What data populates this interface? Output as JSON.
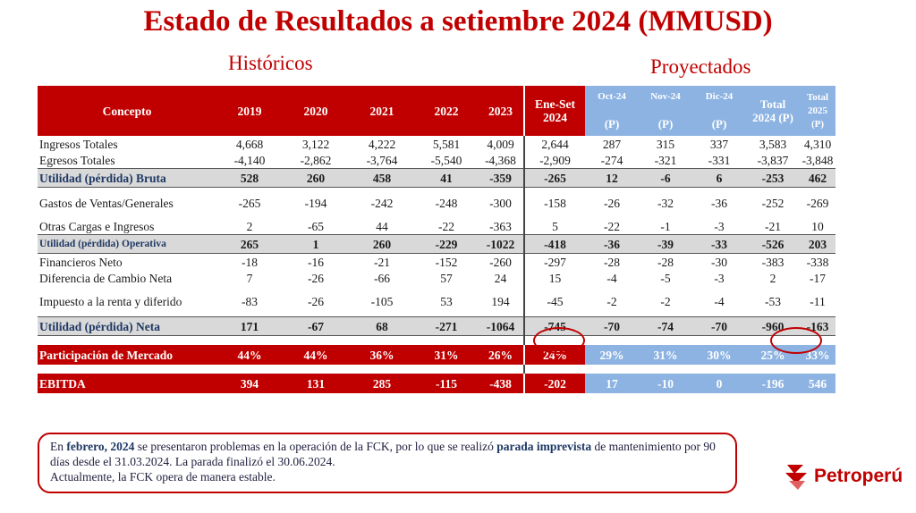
{
  "title": "Estado de Resultados a setiembre 2024 (MMUSD)",
  "subtitle_hist": "Históricos",
  "subtitle_proj": "Proyectados",
  "headers": {
    "concepto": "Concepto",
    "years": [
      "2019",
      "2020",
      "2021",
      "2022",
      "2023"
    ],
    "eneset": [
      "Ene-Set",
      "2024"
    ],
    "oct": [
      "Oct-24",
      "(P)"
    ],
    "nov": [
      "Nov-24",
      "(P)"
    ],
    "dic": [
      "Dic-24",
      "(P)"
    ],
    "total24": [
      "Total",
      "2024 (P)"
    ],
    "total25": [
      "Total",
      "2025",
      "(P)"
    ]
  },
  "rows": [
    {
      "name": "Ingresos Totales",
      "style": "normal",
      "v": [
        "4,668",
        "3,122",
        "4,222",
        "5,581",
        "4,009",
        "2,644",
        "287",
        "315",
        "337",
        "3,583",
        "4,310"
      ]
    },
    {
      "name": "Egresos Totales",
      "style": "normal",
      "v": [
        "-4,140",
        "-2,862",
        "-3,764",
        "-5,540",
        "-4,368",
        "-2,909",
        "-274",
        "-321",
        "-331",
        "-3,837",
        "-3,848"
      ]
    },
    {
      "name": "Utilidad (pérdida) Bruta",
      "style": "bold",
      "v": [
        "528",
        "260",
        "458",
        "41",
        "-359",
        "-265",
        "12",
        "-6",
        "6",
        "-253",
        "462"
      ]
    },
    {
      "name": "Gastos de Ventas/Generales",
      "style": "tall",
      "v": [
        "-265",
        "-194",
        "-242",
        "-248",
        "-300",
        "-158",
        "-26",
        "-32",
        "-36",
        "-252",
        "-269"
      ]
    },
    {
      "name": "Otras Cargas e Ingresos",
      "style": "normal",
      "v": [
        "2",
        "-65",
        "44",
        "-22",
        "-363",
        "5",
        "-22",
        "-1",
        "-3",
        "-21",
        "10"
      ]
    },
    {
      "name": "Utilidad (pérdida) Operativa",
      "style": "bold-small",
      "v": [
        "265",
        "1",
        "260",
        "-229",
        "-1022",
        "-418",
        "-36",
        "-39",
        "-33",
        "-526",
        "203"
      ]
    },
    {
      "name": "Financieros Neto",
      "style": "normal",
      "v": [
        "-18",
        "-16",
        "-21",
        "-152",
        "-260",
        "-297",
        "-28",
        "-28",
        "-30",
        "-383",
        "-338"
      ]
    },
    {
      "name": "Diferencia de Cambio Neta",
      "style": "normal",
      "v": [
        "7",
        "-26",
        "-66",
        "57",
        "24",
        "15",
        "-4",
        "-5",
        "-3",
        "2",
        "-17"
      ]
    },
    {
      "name": "Impuesto a la renta y diferido",
      "style": "tall",
      "v": [
        "-83",
        "-26",
        "-105",
        "53",
        "194",
        "-45",
        "-2",
        "-2",
        "-4",
        "-53",
        "-11"
      ]
    },
    {
      "name": "Utilidad (pérdida) Neta",
      "style": "bold",
      "v": [
        "171",
        "-67",
        "68",
        "-271",
        "-1064",
        "-745",
        "-70",
        "-74",
        "-70",
        "-960",
        "-163"
      ]
    }
  ],
  "market": {
    "name": "Participación de Mercado",
    "v": [
      "44%",
      "44%",
      "36%",
      "31%",
      "26%",
      "24%",
      "29%",
      "31%",
      "30%",
      "25%",
      "33%"
    ]
  },
  "ebitda": {
    "name": "EBITDA",
    "v": [
      "394",
      "131",
      "285",
      "-115",
      "-438",
      "-202",
      "17",
      "-10",
      "0",
      "-196",
      "546"
    ]
  },
  "note": {
    "p1": "En ",
    "b1": "febrero, 2024",
    "p2": " se presentaron problemas en la operación de la FCK, por lo que se realizó ",
    "b2": "parada imprevista",
    "p3": " de mantenimiento por 90 días desde el 31.03.2024. La parada finalizó el 30.06.2024.",
    "p4": "Actualmente, la FCK opera de manera estable."
  },
  "logo": {
    "text": "Petroperú",
    "icon": "petroperu-logo-icon"
  },
  "colors": {
    "red": "#c00000",
    "blue": "#8db3e2",
    "grey": "#d9d9d9"
  }
}
